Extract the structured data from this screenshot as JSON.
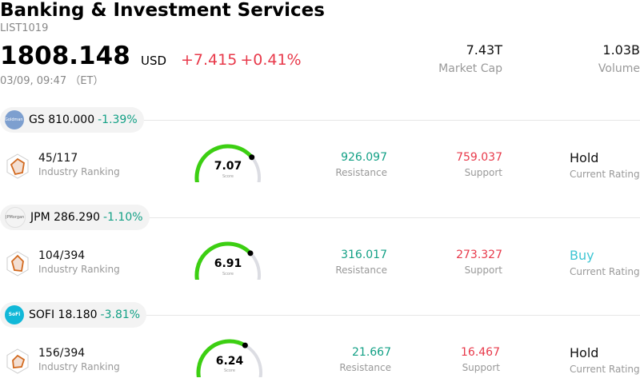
{
  "header": {
    "title": "Banking & Investment Services",
    "code": "LIST1019",
    "price": "1808.148",
    "currency": "USD",
    "change_abs": "+7.415",
    "change_pct": "+0.41%",
    "datetime": "03/09, 09:47 （ET）",
    "market_cap_value": "7.43T",
    "market_cap_label": "Market Cap",
    "volume_value": "1.03B",
    "volume_label": "Volume"
  },
  "colors": {
    "up": "#e8394a",
    "down": "#12a085",
    "gauge_fill": "#3ccf12",
    "gauge_track": "#dcdde3",
    "buy": "#3fc6d4"
  },
  "stocks": [
    {
      "ticker": "GS",
      "price": "810.000",
      "change": "-1.39%",
      "logo_text": "Goldman Sachs",
      "rank": "45/117",
      "rank_label": "Industry Ranking",
      "score": "7.07",
      "score_fraction": 0.707,
      "score_label": "Score",
      "resistance": "926.097",
      "resistance_label": "Resistance",
      "support": "759.037",
      "support_label": "Support",
      "rating": "Hold",
      "rating_label": "Current Rating"
    },
    {
      "ticker": "JPM",
      "price": "286.290",
      "change": "-1.10%",
      "logo_text": "JPMorgan Chase",
      "rank": "104/394",
      "rank_label": "Industry Ranking",
      "score": "6.91",
      "score_fraction": 0.691,
      "score_label": "Score",
      "resistance": "316.017",
      "resistance_label": "Resistance",
      "support": "273.327",
      "support_label": "Support",
      "rating": "Buy",
      "rating_label": "Current Rating"
    },
    {
      "ticker": "SOFI",
      "price": "18.180",
      "change": "-3.81%",
      "logo_text": "SoFi",
      "rank": "156/394",
      "rank_label": "Industry Ranking",
      "score": "6.24",
      "score_fraction": 0.624,
      "score_label": "Score",
      "resistance": "21.667",
      "resistance_label": "Resistance",
      "support": "16.467",
      "support_label": "Support",
      "rating": "Hold",
      "rating_label": "Current Rating"
    }
  ]
}
